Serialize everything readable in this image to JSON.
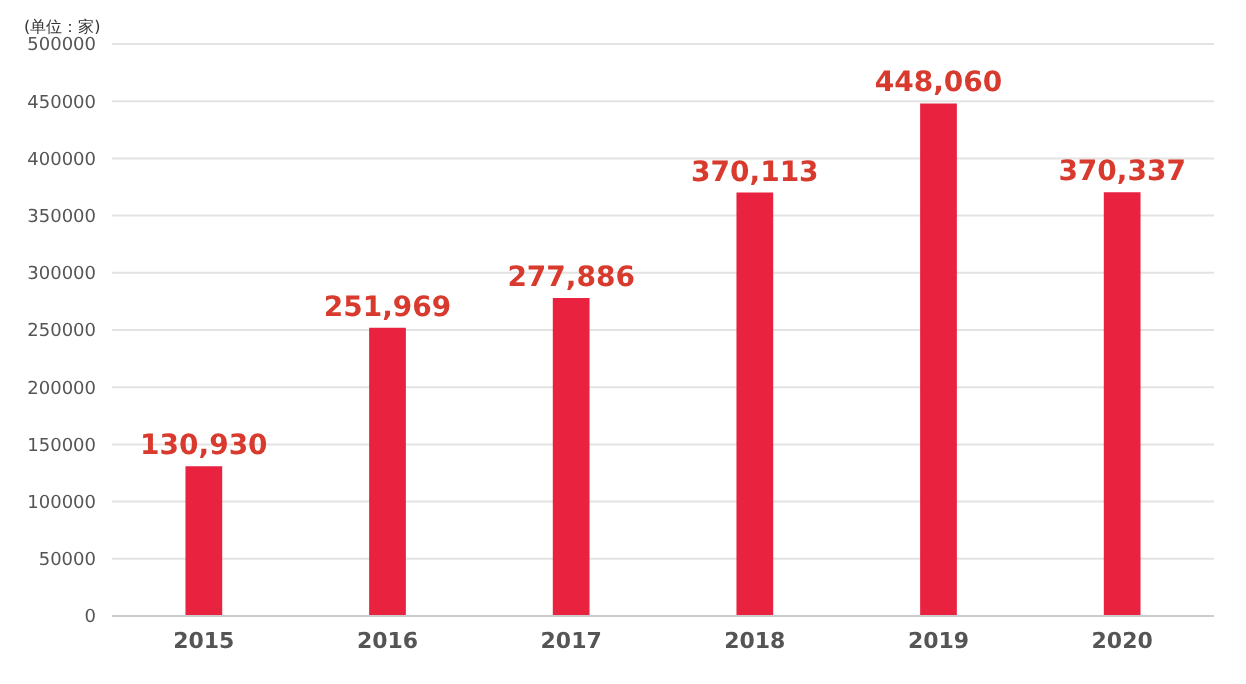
{
  "chart_data": {
    "type": "bar",
    "ylabel": "(单位：家)",
    "categories": [
      "2015",
      "2016",
      "2017",
      "2018",
      "2019",
      "2020"
    ],
    "values": [
      130930,
      251969,
      277886,
      370113,
      448060,
      370337
    ],
    "value_labels": [
      "130,930",
      "251,969",
      "277,886",
      "370,113",
      "448,060",
      "370,337"
    ],
    "color": "#e8223f",
    "ylim": [
      0,
      500000
    ],
    "yticks": [
      0,
      50000,
      100000,
      150000,
      200000,
      250000,
      300000,
      350000,
      400000,
      450000,
      500000
    ],
    "grid": "y"
  }
}
